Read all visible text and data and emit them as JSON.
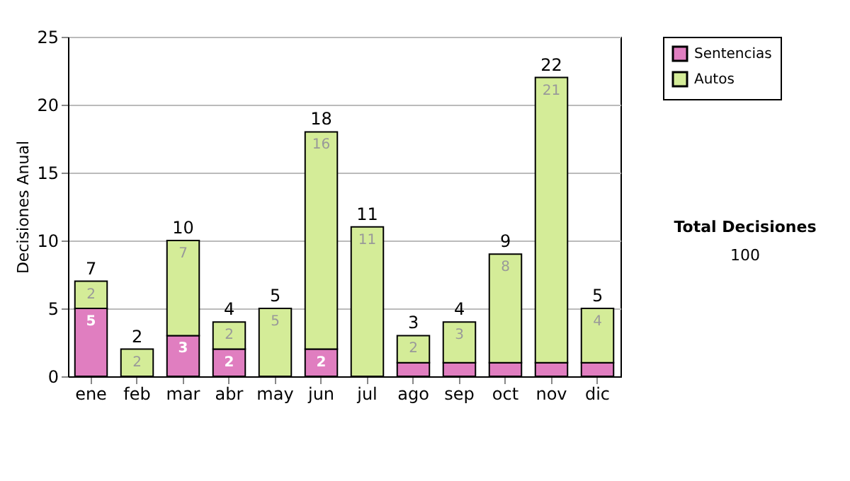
{
  "chart_data": {
    "type": "bar",
    "stacked": true,
    "ylabel": "Decisiones Anual",
    "categories": [
      "ene",
      "feb",
      "mar",
      "abr",
      "may",
      "jun",
      "jul",
      "ago",
      "sep",
      "oct",
      "nov",
      "dic"
    ],
    "series": [
      {
        "name": "Sentencias",
        "color": "#e07ec0",
        "values": [
          5,
          0,
          3,
          2,
          0,
          2,
          0,
          1,
          1,
          1,
          1,
          1
        ],
        "value_labels": [
          "5",
          null,
          "3",
          "2",
          null,
          "2",
          null,
          null,
          null,
          null,
          null,
          null
        ]
      },
      {
        "name": "Autos",
        "color": "#d4ec98",
        "values": [
          2,
          2,
          7,
          2,
          5,
          16,
          11,
          2,
          3,
          8,
          21,
          4
        ],
        "value_labels": [
          "2",
          "2",
          "7",
          "2",
          "5",
          "16",
          "11",
          "2",
          "3",
          "8",
          "21",
          "4"
        ]
      }
    ],
    "totals": [
      "7",
      "2",
      "10",
      "4",
      "5",
      "18",
      "11",
      "3",
      "4",
      "9",
      "22",
      "5"
    ],
    "ylim": [
      0,
      25
    ],
    "yticks": [
      0,
      5,
      10,
      15,
      20,
      25
    ],
    "grid": "y",
    "legend": "right",
    "annotations": [
      "Total Decisiones",
      "100"
    ]
  }
}
